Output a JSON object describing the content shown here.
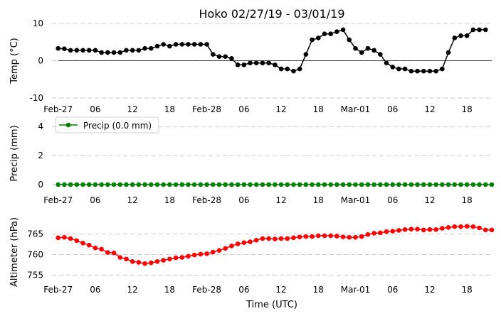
{
  "chart_data": {
    "title": "Hoko 02/27/19 - 03/01/19",
    "xlabel": "Time (UTC)",
    "x_ticks": [
      "Feb-27",
      "06",
      "12",
      "18",
      "Feb-28",
      "06",
      "12",
      "18",
      "Mar-01",
      "06",
      "12",
      "18"
    ],
    "x_tick_hours": [
      0,
      6,
      12,
      18,
      24,
      30,
      36,
      42,
      48,
      54,
      60,
      66
    ],
    "x_range_hours": [
      -1,
      70
    ],
    "panels": [
      {
        "type": "line",
        "ylabel": "Temp (°C)",
        "ylim": [
          -10,
          10
        ],
        "yticks": [
          -10,
          0,
          10
        ],
        "grid": true,
        "zero_line": true,
        "color": "#000000",
        "series": [
          {
            "hours": [
              0,
              1,
              2,
              3,
              4,
              5,
              6,
              7,
              8,
              9,
              10,
              11,
              12,
              13,
              14,
              15,
              16,
              17,
              18,
              19,
              20,
              21,
              22,
              23,
              24,
              25,
              26,
              27,
              28,
              29,
              30,
              31,
              32,
              33,
              34,
              35,
              36,
              37,
              38,
              39,
              40,
              41,
              42,
              43,
              44,
              45,
              46,
              47,
              48,
              49,
              50,
              51,
              52,
              53,
              54,
              55,
              56,
              57,
              58,
              59,
              60,
              61,
              62,
              63,
              64,
              65,
              66,
              67,
              68,
              69,
              70
            ],
            "values": [
              3.3,
              3.2,
              2.8,
              2.8,
              2.8,
              2.8,
              2.8,
              2.2,
              2.2,
              2.2,
              2.2,
              2.8,
              2.8,
              2.8,
              3.3,
              3.3,
              3.9,
              4.4,
              3.9,
              4.4,
              4.4,
              4.4,
              4.4,
              4.4,
              4.4,
              1.7,
              1.1,
              1.1,
              0.6,
              -1.1,
              -1.1,
              -0.6,
              -0.6,
              -0.6,
              -0.6,
              -1.1,
              -2.2,
              -2.2,
              -2.8,
              -2.2,
              1.7,
              5.6,
              6.1,
              7.2,
              7.2,
              7.8,
              8.3,
              5.6,
              3.3,
              2.2,
              3.3,
              2.8,
              1.7,
              -0.6,
              -1.7,
              -2.2,
              -2.2,
              -2.8,
              -2.8,
              -2.8,
              -2.8,
              -2.8,
              -2.2,
              2.2,
              6.1,
              6.7,
              6.7,
              8.3,
              8.3,
              8.3,
              null
            ]
          }
        ]
      },
      {
        "type": "line",
        "ylabel": "Precip (mm)",
        "ylim": [
          -0.2,
          4.5
        ],
        "yticks": [
          0,
          2,
          4
        ],
        "grid": true,
        "color": "#008000",
        "legend": {
          "label": "Precip (0.0 mm)",
          "placement": "upper-left"
        },
        "series": [
          {
            "hours": [
              0,
              1,
              2,
              3,
              4,
              5,
              6,
              7,
              8,
              9,
              10,
              11,
              12,
              13,
              14,
              15,
              16,
              17,
              18,
              19,
              20,
              21,
              22,
              23,
              24,
              25,
              26,
              27,
              28,
              29,
              30,
              31,
              32,
              33,
              34,
              35,
              36,
              37,
              38,
              39,
              40,
              41,
              42,
              43,
              44,
              45,
              46,
              47,
              48,
              49,
              50,
              51,
              52,
              53,
              54,
              55,
              56,
              57,
              58,
              59,
              60,
              61,
              62,
              63,
              64,
              65,
              66,
              67,
              68,
              69,
              70
            ],
            "values": [
              0,
              0,
              0,
              0,
              0,
              0,
              0,
              0,
              0,
              0,
              0,
              0,
              0,
              0,
              0,
              0,
              0,
              0,
              0,
              0,
              0,
              0,
              0,
              0,
              0,
              0,
              0,
              0,
              0,
              0,
              0,
              0,
              0,
              0,
              0,
              0,
              0,
              0,
              0,
              0,
              0,
              0,
              0,
              0,
              0,
              0,
              0,
              0,
              0,
              0,
              0,
              0,
              0,
              0,
              0,
              0,
              0,
              0,
              0,
              0,
              0,
              0,
              0,
              0,
              0,
              0,
              0,
              0,
              0,
              0,
              0
            ]
          }
        ]
      },
      {
        "type": "line",
        "ylabel": "Altimeter (hPa)",
        "ylim": [
          753.5,
          767.7
        ],
        "yticks": [
          755,
          760,
          765
        ],
        "grid": true,
        "color": "#ff0000",
        "series": [
          {
            "hours": [
              0,
              1,
              2,
              3,
              4,
              5,
              6,
              7,
              8,
              9,
              10,
              11,
              12,
              13,
              14,
              15,
              16,
              17,
              18,
              19,
              20,
              21,
              22,
              23,
              24,
              25,
              26,
              27,
              28,
              29,
              30,
              31,
              32,
              33,
              34,
              35,
              36,
              37,
              38,
              39,
              40,
              41,
              42,
              43,
              44,
              45,
              46,
              47,
              48,
              49,
              50,
              51,
              52,
              53,
              54,
              55,
              56,
              57,
              58,
              59,
              60,
              61,
              62,
              63,
              64,
              65,
              66,
              67,
              68,
              69,
              70
            ],
            "values": [
              764.1,
              764.2,
              763.9,
              763.4,
              762.8,
              762.3,
              761.6,
              761.3,
              760.5,
              760.4,
              759.3,
              758.9,
              758.3,
              758.1,
              757.8,
              758.0,
              758.3,
              758.6,
              758.9,
              759.2,
              759.3,
              759.6,
              759.9,
              760.1,
              760.2,
              760.6,
              761.0,
              761.5,
              762.1,
              762.6,
              762.9,
              763.1,
              763.5,
              763.9,
              763.9,
              763.8,
              763.9,
              763.9,
              764.1,
              764.3,
              764.4,
              764.4,
              764.6,
              764.6,
              764.6,
              764.5,
              764.3,
              764.2,
              764.2,
              764.4,
              764.9,
              765.2,
              765.3,
              765.6,
              765.7,
              765.9,
              766.1,
              766.2,
              766.2,
              766.0,
              766.1,
              766.1,
              766.4,
              766.6,
              766.8,
              766.8,
              766.9,
              766.8,
              766.5,
              766.0,
              766.0
            ]
          }
        ]
      }
    ]
  }
}
